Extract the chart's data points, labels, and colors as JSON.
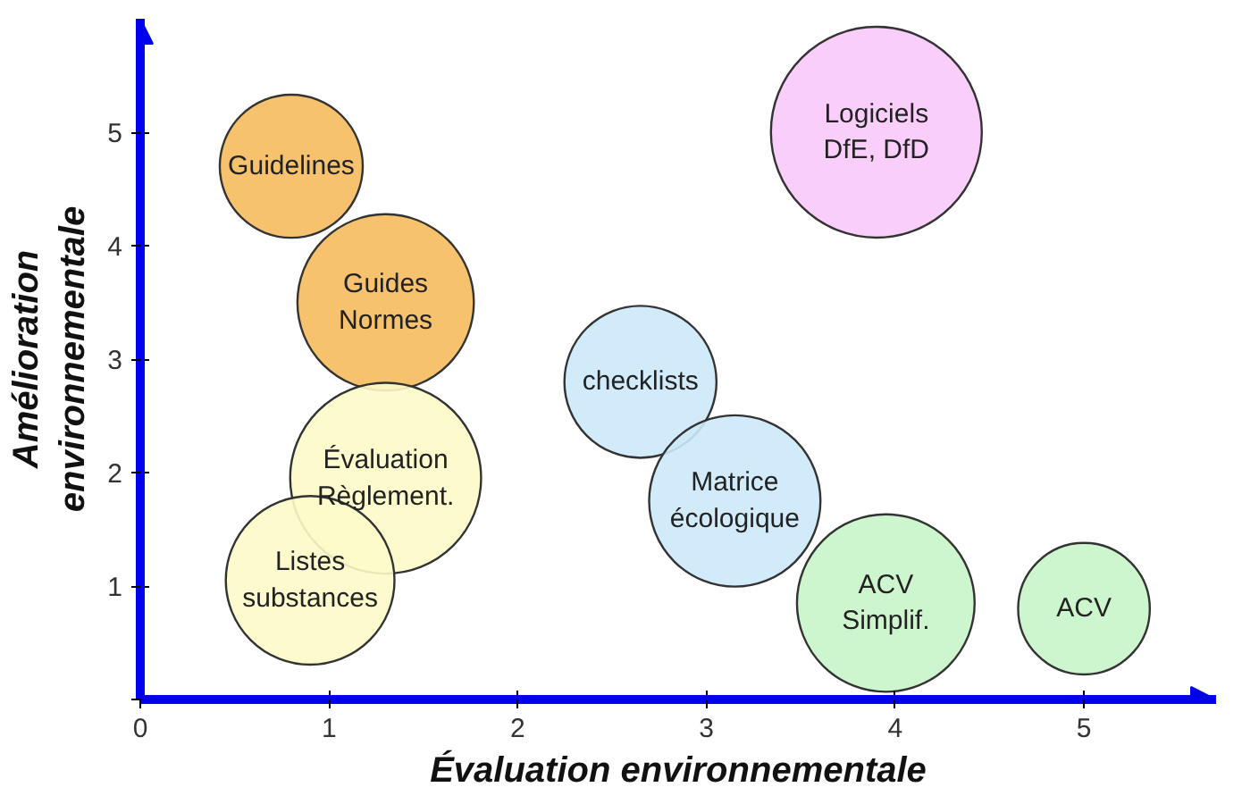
{
  "chart_data": {
    "type": "bubble",
    "xlabel": "Évaluation environnementale",
    "ylabel": "Amélioration\nenvironnementale",
    "x": [
      0.8,
      1.3,
      2.65,
      1.3,
      0.9,
      3.15,
      3.95,
      5.0,
      3.9
    ],
    "values": [
      4.7,
      3.5,
      2.8,
      1.95,
      1.05,
      1.75,
      0.85,
      0.8,
      5.0
    ],
    "sizes": [
      0.46,
      0.7,
      0.52,
      0.82,
      0.64,
      0.66,
      0.71,
      0.39,
      1
    ],
    "colors": [
      "#f6bb5e",
      "#f6bb5e",
      "#cde9fa",
      "#fdfbc9",
      "#fdfbc9",
      "#cde9fa",
      "#c9f5c9",
      "#c9f5c9",
      "#f9c9f9"
    ],
    "annotations": [
      {
        "text": "Guidelines",
        "x": 0.8,
        "y": 4.7
      },
      {
        "text": "Guides\nNormes",
        "x": 1.3,
        "y": 3.5
      },
      {
        "text": "checklists",
        "x": 2.65,
        "y": 2.8
      },
      {
        "text": "Évaluation\nRèglement.",
        "x": 1.3,
        "y": 1.95
      },
      {
        "text": "Listes\nsubstances",
        "x": 0.9,
        "y": 1.05
      },
      {
        "text": "Matrice\nécologique",
        "x": 3.15,
        "y": 1.75
      },
      {
        "text": "ACV\nSimplif.",
        "x": 3.95,
        "y": 0.85
      },
      {
        "text": "ACV",
        "x": 5.0,
        "y": 0.8
      },
      {
        "text": "Logiciels\nDfE, DfD",
        "x": 3.9,
        "y": 5.0
      }
    ],
    "xlim": [
      0,
      5.7
    ],
    "ylim": [
      0,
      6
    ],
    "xticks": [
      {
        "value": 0,
        "label": "0"
      },
      1,
      2,
      3,
      4,
      5
    ],
    "yticks": [
      {
        "value": 0,
        "label": null
      },
      1,
      2,
      3,
      4,
      5
    ],
    "grid": false
  }
}
